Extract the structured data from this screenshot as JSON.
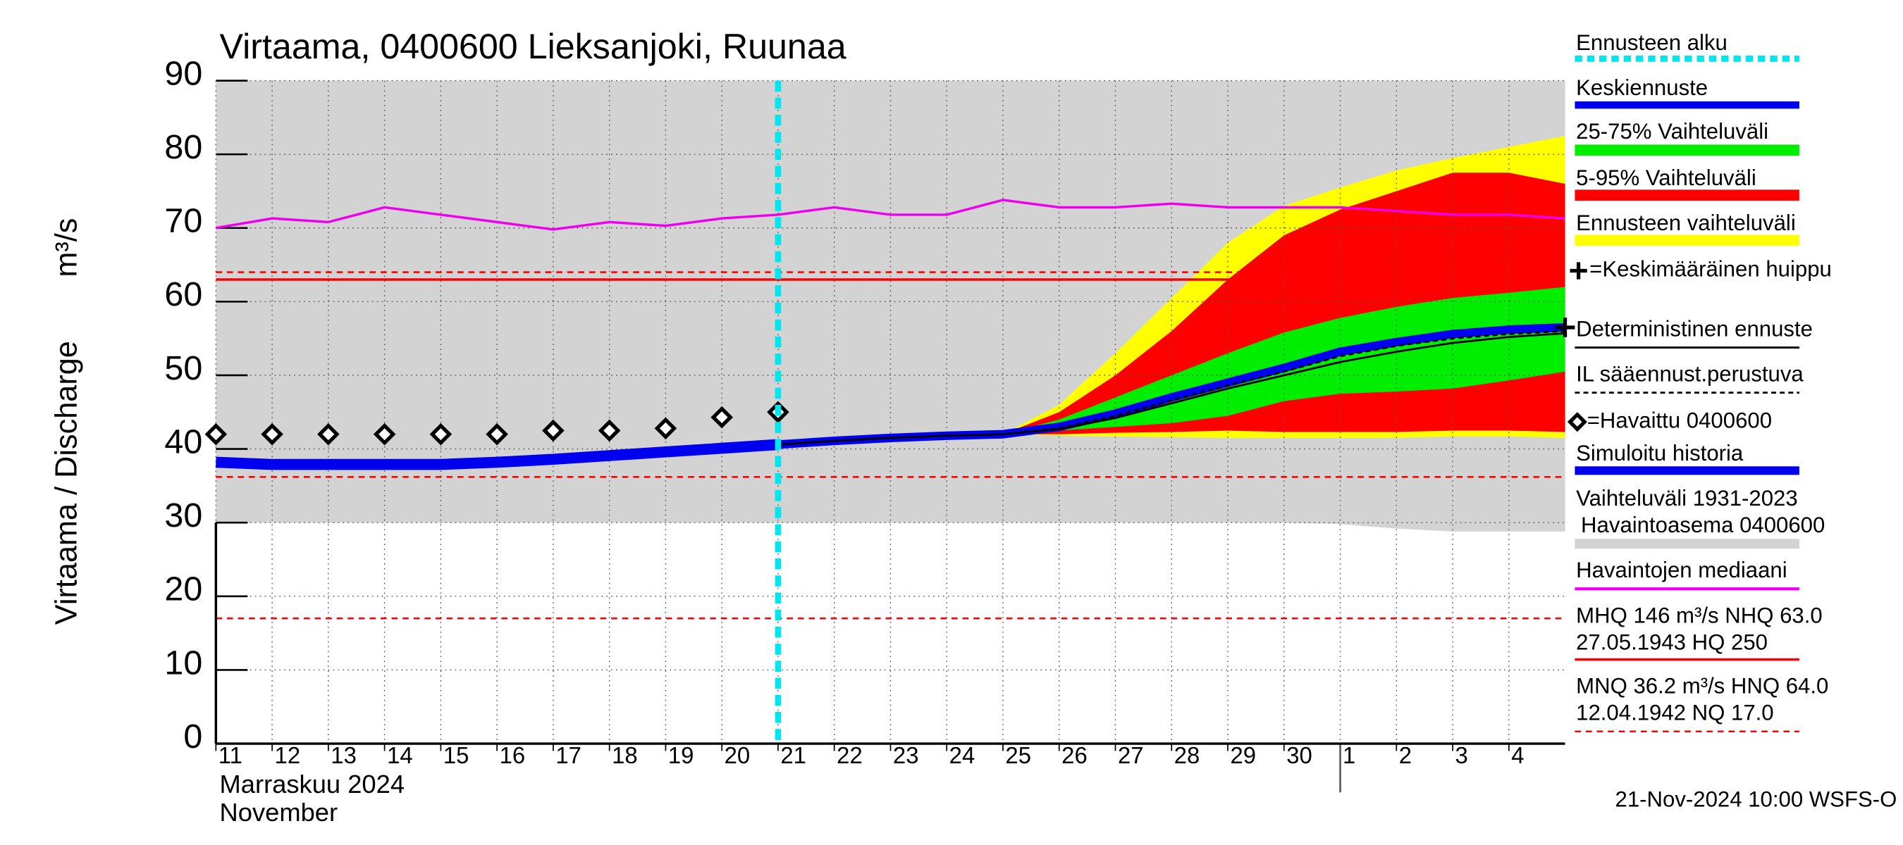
{
  "chart_data": {
    "type": "line",
    "title": "Virtaama, 0400600 Lieksanjoki, Ruunaa",
    "ylabel": "Virtaama / Discharge",
    "yunit": "m³/s",
    "month_labels": [
      "Marraskuu 2024",
      "November"
    ],
    "footer": "21-Nov-2024 10:00 WSFS-O",
    "categories": [
      "11",
      "12",
      "13",
      "14",
      "15",
      "16",
      "17",
      "18",
      "19",
      "20",
      "21",
      "22",
      "23",
      "24",
      "25",
      "26",
      "27",
      "28",
      "29",
      "30",
      "1",
      "2",
      "3",
      "4",
      null
    ],
    "ylim": [
      0,
      90
    ],
    "yticks": [
      0,
      10,
      20,
      30,
      40,
      50,
      60,
      70,
      80,
      90
    ],
    "grid": true,
    "forecast_start": {
      "name": "Ennusteen alku",
      "color": "#00e5ee"
    },
    "bands": [
      {
        "name": [
          "Vaihteluväli 1931-2023",
          "Havaintoasema 0400600"
        ],
        "color": "#d3d3d3",
        "lower": [
          30,
          30,
          30,
          30,
          30,
          30,
          30,
          30,
          30,
          30,
          30,
          30,
          30,
          30,
          30,
          30,
          30,
          30,
          30,
          30,
          29.8,
          29.2,
          28.8,
          28.8,
          28.8
        ],
        "upper": [
          90,
          90,
          90,
          90,
          90,
          90,
          90,
          90,
          90,
          90,
          90,
          90,
          90,
          90,
          90,
          90,
          90,
          90,
          90,
          90,
          90,
          90,
          90,
          90,
          90
        ]
      },
      {
        "name": "Ennusteen vaihteluväli",
        "color": "#ffff00",
        "lower": [
          null,
          null,
          null,
          null,
          null,
          null,
          null,
          null,
          null,
          null,
          null,
          null,
          null,
          null,
          42,
          41.8,
          41.7,
          41.6,
          41.5,
          41.5,
          41.5,
          41.5,
          41.7,
          41.7,
          41.5
        ],
        "upper": [
          null,
          null,
          null,
          null,
          null,
          null,
          null,
          null,
          null,
          null,
          null,
          null,
          null,
          null,
          42,
          46,
          53,
          60.5,
          68,
          73,
          75.5,
          77.8,
          79.5,
          81,
          82.5
        ]
      },
      {
        "name": "5-95% Vaihteluväli",
        "color": "#ff0000",
        "lower": [
          null,
          null,
          null,
          null,
          null,
          null,
          null,
          null,
          null,
          null,
          null,
          null,
          null,
          null,
          42,
          42,
          42.2,
          42.3,
          42.5,
          42.3,
          42.3,
          42.3,
          42.5,
          42.5,
          42.3
        ],
        "upper": [
          null,
          null,
          null,
          null,
          null,
          null,
          null,
          null,
          null,
          null,
          null,
          null,
          null,
          null,
          42,
          45,
          50,
          56,
          63,
          69,
          72.5,
          75,
          77.5,
          77.5,
          76
        ]
      },
      {
        "name": "25-75% Vaihteluväli",
        "color": "#00ee00",
        "lower": [
          null,
          null,
          null,
          null,
          null,
          null,
          null,
          null,
          null,
          null,
          null,
          null,
          null,
          null,
          42,
          42.5,
          43,
          43.5,
          44.5,
          46.5,
          47.5,
          47.8,
          48.2,
          49.3,
          50.5
        ],
        "upper": [
          null,
          null,
          null,
          null,
          null,
          null,
          null,
          null,
          null,
          null,
          null,
          null,
          null,
          null,
          42,
          44,
          47,
          50,
          53,
          55.8,
          57.8,
          59.3,
          60.5,
          61.2,
          62
        ]
      }
    ],
    "series": [
      {
        "name": "Havaintojen mediaani",
        "color": "#ee00ee",
        "width": 2,
        "values": [
          70,
          71.3,
          70.8,
          72.8,
          71.8,
          70.8,
          69.8,
          70.8,
          70.3,
          71.3,
          71.8,
          72.8,
          71.8,
          71.8,
          73.8,
          72.8,
          72.8,
          73.3,
          72.8,
          72.8,
          72.8,
          72.3,
          71.8,
          71.8,
          71.3
        ]
      },
      {
        "name": "Simuloitu historia",
        "color": "#0000ee",
        "width": 9,
        "values": [
          38.2,
          37.9,
          37.9,
          37.9,
          37.9,
          38.2,
          38.6,
          39.1,
          39.6,
          40.1,
          40.6,
          null,
          null,
          null,
          null,
          null,
          null,
          null,
          null,
          null,
          null,
          null,
          null,
          null,
          null
        ]
      },
      {
        "name": "Keskiennuste",
        "color": "#0000ee",
        "width": 7,
        "values": [
          null,
          null,
          null,
          null,
          null,
          null,
          null,
          null,
          null,
          null,
          40.6,
          41.1,
          41.5,
          41.8,
          42,
          43,
          44.8,
          47,
          49,
          51,
          53.2,
          54.5,
          55.6,
          56.2,
          56.5
        ]
      },
      {
        "name": "Deterministinen ennuste",
        "color": "#000000",
        "width": 1.6,
        "values": [
          null,
          null,
          null,
          null,
          null,
          null,
          null,
          null,
          null,
          null,
          40.6,
          41.1,
          41.5,
          41.8,
          42,
          42.7,
          44.2,
          46.2,
          48.2,
          50,
          51.8,
          53.2,
          54.4,
          55.2,
          55.7
        ]
      },
      {
        "name": "IL sääennust.perustuva",
        "color": "#000000",
        "width": 1.6,
        "dash": true,
        "values": [
          null,
          null,
          null,
          null,
          null,
          null,
          null,
          null,
          null,
          null,
          40.6,
          41.1,
          41.5,
          41.8,
          42,
          42.8,
          44.5,
          46.6,
          48.6,
          50.5,
          52.6,
          54,
          55,
          55.6,
          56
        ]
      },
      {
        "name": "=Havaittu 0400600",
        "color": "#000000",
        "marker": "diamond",
        "values": [
          42,
          42,
          42,
          42,
          42,
          42,
          42.5,
          42.5,
          42.8,
          44.3,
          45,
          null,
          null,
          null,
          null,
          null,
          null,
          null,
          null,
          null,
          null,
          null,
          null,
          null,
          null
        ]
      },
      {
        "name": "=Keskimääräinen huippu",
        "color": "#000000",
        "marker": "plus",
        "values": [
          null,
          null,
          null,
          null,
          null,
          null,
          null,
          null,
          null,
          null,
          null,
          null,
          null,
          null,
          null,
          null,
          null,
          null,
          null,
          null,
          null,
          null,
          null,
          null,
          56.5
        ]
      }
    ],
    "reference_lines": [
      {
        "name": [
          "MHQ  146 m³/s NHQ 63.0",
          "27.05.1943 HQ  250"
        ],
        "color": "#ff0000",
        "dash": false,
        "values": [
          63
        ]
      },
      {
        "name": [
          "MNQ 36.2 m³/s HNQ 64.0",
          "12.04.1942 NQ 17.0"
        ],
        "color": "#ff0000",
        "dash": true,
        "values": [
          64,
          36.2,
          17
        ]
      }
    ]
  }
}
